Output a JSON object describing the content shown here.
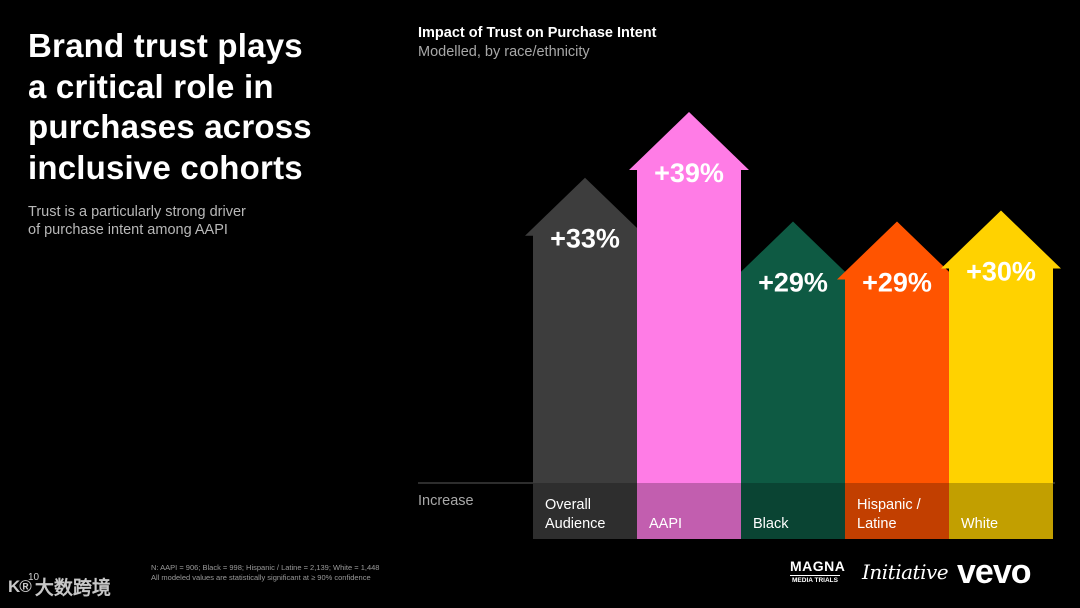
{
  "slide": {
    "headline": "Brand trust plays\na critical role in\npurchases across\ninclusive cohorts",
    "subhead": "Trust is a particularly strong driver\nof purchase intent among AAPI",
    "footnote_line1": "N: AAPI = 906; Black = 998; Hispanic / Latine = 2,139; White = 1,448",
    "footnote_line2": "All modeled values are statistically significant at ≥ 90% confidence",
    "page_number": "10"
  },
  "chart_data": {
    "type": "bar",
    "title": "Impact of Trust on Purchase Intent",
    "subtitle": "Modelled, by race/ethnicity",
    "row_label": "Increase",
    "categories": [
      "Overall\nAudience",
      "AAPI",
      "Black",
      "Hispanic /\nLatine",
      "White"
    ],
    "values": [
      33,
      39,
      29,
      29,
      30
    ],
    "value_labels": [
      "+33%",
      "+39%",
      "+29%",
      "+29%",
      "+30%"
    ],
    "colors": [
      "#3d3d3d",
      "#ff7ce6",
      "#0e5a43",
      "#ff5400",
      "#ffd200"
    ],
    "ylim": [
      0,
      39
    ]
  },
  "logos": {
    "magna_top": "MAGNA",
    "magna_bottom": "MEDIA TRIALS",
    "initiative": "Initiative",
    "vevo": "vevo"
  },
  "watermark": {
    "mark": "K®",
    "text": "大数跨境"
  }
}
